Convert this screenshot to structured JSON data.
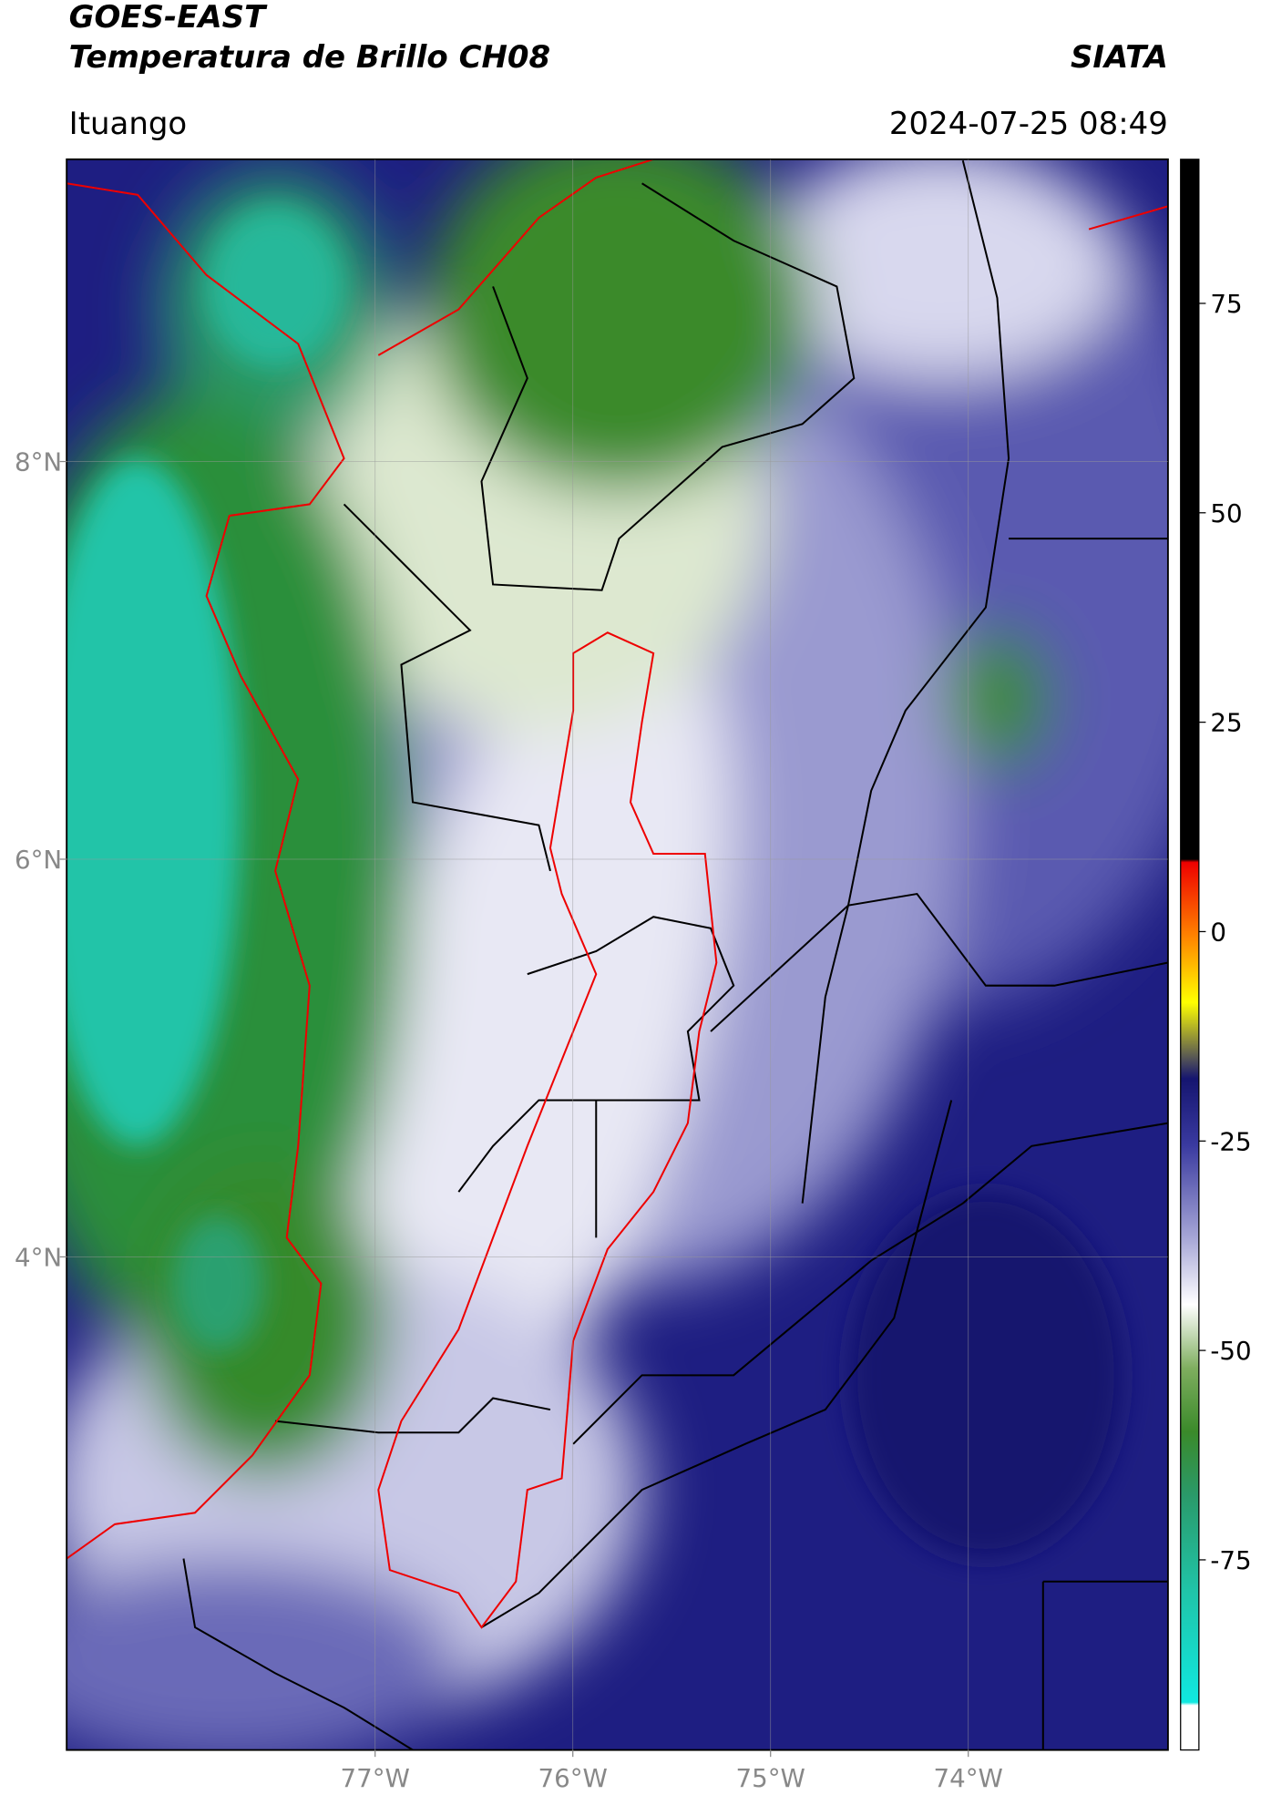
{
  "header": {
    "title": "GOES-EAST",
    "subtitle": "Temperatura de Brillo CH08",
    "region": "Ituango",
    "source": "SIATA",
    "datetime": "2024-07-25 08:49"
  },
  "map": {
    "xlim": [
      -78.56,
      -72.99
    ],
    "ylim": [
      1.52,
      9.52
    ],
    "xticks": [
      {
        "value": -77,
        "label": "77°W"
      },
      {
        "value": -76,
        "label": "76°W"
      },
      {
        "value": -75,
        "label": "75°W"
      },
      {
        "value": -74,
        "label": "74°W"
      }
    ],
    "yticks": [
      {
        "value": 4,
        "label": "4°N"
      },
      {
        "value": 6,
        "label": "6°N"
      },
      {
        "value": 8,
        "label": "8°N"
      }
    ],
    "grid": true
  },
  "colorbar": {
    "lim": [
      -97.7,
      92.2
    ],
    "ticks": [
      -75,
      -50,
      -25,
      0,
      25,
      50,
      75
    ]
  }
}
